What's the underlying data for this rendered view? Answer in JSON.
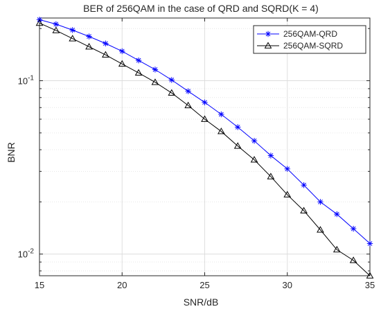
{
  "chart_data": {
    "type": "line",
    "title": "BER of 256QAM in the case of QRD and SQRD(K = 4)",
    "xlabel": "SNR/dB",
    "ylabel": "BNR",
    "xlim": [
      15,
      35
    ],
    "ylim": [
      0.0075,
      0.23
    ],
    "yscale": "log",
    "grid": true,
    "legend_position": "top-right",
    "x_ticks": [
      15,
      20,
      25,
      30,
      35
    ],
    "x_tick_labels": [
      "15",
      "20",
      "25",
      "30",
      "35"
    ],
    "y_ticks": [
      0.1,
      0.01
    ],
    "y_tick_labels": [
      {
        "base": "10",
        "exp": "-1"
      },
      {
        "base": "10",
        "exp": "-2"
      }
    ],
    "x": [
      15,
      16,
      17,
      18,
      19,
      20,
      21,
      22,
      23,
      24,
      25,
      26,
      27,
      28,
      29,
      30,
      31,
      32,
      33,
      34,
      35
    ],
    "series": [
      {
        "name": "256QAM-QRD",
        "color": "#0000ff",
        "marker": "asterisk",
        "values": [
          0.225,
          0.212,
          0.196,
          0.18,
          0.164,
          0.148,
          0.131,
          0.116,
          0.101,
          0.087,
          0.075,
          0.064,
          0.054,
          0.045,
          0.037,
          0.031,
          0.025,
          0.02,
          0.017,
          0.014,
          0.0115
        ]
      },
      {
        "name": "256QAM-SQRD",
        "color": "#000000",
        "marker": "triangle",
        "values": [
          0.215,
          0.195,
          0.175,
          0.157,
          0.141,
          0.125,
          0.111,
          0.098,
          0.085,
          0.072,
          0.06,
          0.051,
          0.042,
          0.035,
          0.028,
          0.022,
          0.0178,
          0.0138,
          0.0106,
          0.0092,
          0.0075
        ]
      }
    ]
  }
}
